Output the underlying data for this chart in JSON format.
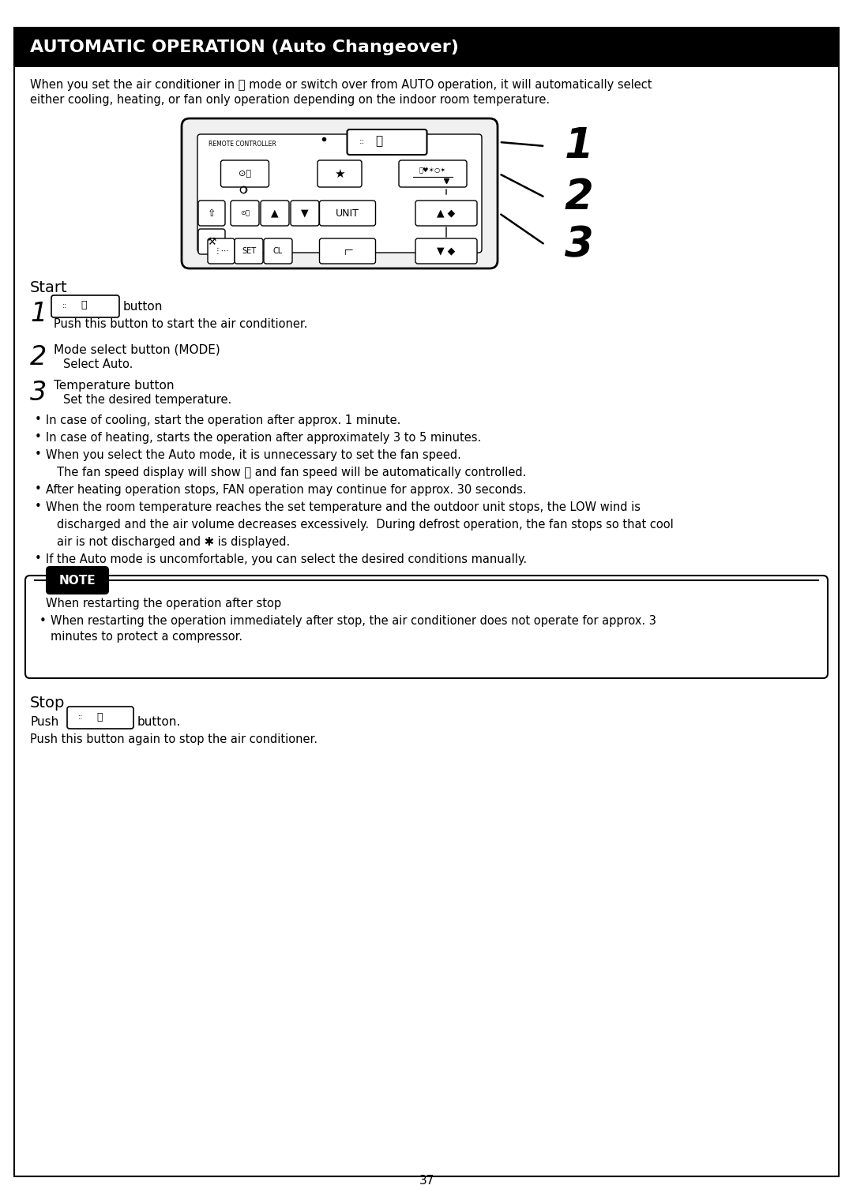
{
  "title": "AUTOMATIC OPERATION (Auto Changeover)",
  "title_bg": "#000000",
  "title_fg": "#ffffff",
  "page_bg": "#ffffff",
  "border_color": "#000000",
  "intro_line1": "When you set the air conditioner in Ⓐ mode or switch over from AUTO operation, it will automatically select",
  "intro_line2": "either cooling, heating, or fan only operation depending on the indoor room temperature.",
  "start_label": "Start",
  "stop_label": "Stop",
  "stop_text3": "Push this button again to stop the air conditioner.",
  "note_heading": "When restarting the operation after stop",
  "note_bullet": "When restarting the operation immediately after stop, the air conditioner does not operate for approx. 3",
  "note_bullet2": "minutes to protect a compressor.",
  "page_number": "37",
  "bullet_lines": [
    "In case of cooling, start the operation after approx. 1 minute.",
    "In case of heating, starts the operation after approximately 3 to 5 minutes.",
    "When you select the Auto mode, it is unnecessary to set the fan speed.",
    "  The fan speed display will show Ⓐ and fan speed will be automatically controlled.",
    "After heating operation stops, FAN operation may continue for approx. 30 seconds.",
    "When the room temperature reaches the set temperature and the outdoor unit stops, the LOW wind is",
    "  discharged and the air volume decreases excessively.  During defrost operation, the fan stops so that cool",
    "  air is not discharged and ✱ is displayed.",
    "If the Auto mode is uncomfortable, you can select the desired conditions manually."
  ],
  "bullet_is_continuation": [
    false,
    false,
    false,
    true,
    false,
    false,
    true,
    true,
    false
  ]
}
